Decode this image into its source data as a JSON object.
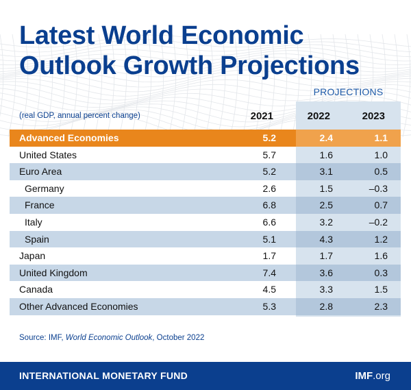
{
  "title_line1": "Latest World Economic",
  "title_line2": "Outlook Growth Projections",
  "colors": {
    "title": "#0a3f8f",
    "highlight": "#e9861c",
    "alt_row": "#c7d7e7",
    "projection_band": "#d7e3ee",
    "footer": "#0b3f8e"
  },
  "chart_data": {
    "type": "table",
    "projections_label": "PROJECTIONS",
    "subtitle": "(real GDP, annual percent change)",
    "columns": [
      "2021",
      "2022",
      "2023"
    ],
    "rows": [
      {
        "name": "Advanced Economies",
        "values": [
          "5.2",
          "2.4",
          "1.1"
        ],
        "highlight": true,
        "indent": false,
        "shaded": false
      },
      {
        "name": "United States",
        "values": [
          "5.7",
          "1.6",
          "1.0"
        ],
        "highlight": false,
        "indent": false,
        "shaded": false
      },
      {
        "name": "Euro Area",
        "values": [
          "5.2",
          "3.1",
          "0.5"
        ],
        "highlight": false,
        "indent": false,
        "shaded": true
      },
      {
        "name": "Germany",
        "values": [
          "2.6",
          "1.5",
          "–0.3"
        ],
        "highlight": false,
        "indent": true,
        "shaded": false
      },
      {
        "name": "France",
        "values": [
          "6.8",
          "2.5",
          "0.7"
        ],
        "highlight": false,
        "indent": true,
        "shaded": true
      },
      {
        "name": "Italy",
        "values": [
          "6.6",
          "3.2",
          "–0.2"
        ],
        "highlight": false,
        "indent": true,
        "shaded": false
      },
      {
        "name": "Spain",
        "values": [
          "5.1",
          "4.3",
          "1.2"
        ],
        "highlight": false,
        "indent": true,
        "shaded": true
      },
      {
        "name": "Japan",
        "values": [
          "1.7",
          "1.7",
          "1.6"
        ],
        "highlight": false,
        "indent": false,
        "shaded": false
      },
      {
        "name": "United Kingdom",
        "values": [
          "7.4",
          "3.6",
          "0.3"
        ],
        "highlight": false,
        "indent": false,
        "shaded": true
      },
      {
        "name": "Canada",
        "values": [
          "4.5",
          "3.3",
          "1.5"
        ],
        "highlight": false,
        "indent": false,
        "shaded": false
      },
      {
        "name": "Other Advanced Economies",
        "values": [
          "5.3",
          "2.8",
          "2.3"
        ],
        "highlight": false,
        "indent": false,
        "shaded": true
      }
    ]
  },
  "source": {
    "prefix": "Source: IMF, ",
    "title": "World Economic Outlook",
    "suffix": ", October 2022"
  },
  "footer": {
    "org_name": "INTERNATIONAL MONETARY FUND",
    "site_main": "IMF",
    "site_ext": ".org"
  }
}
